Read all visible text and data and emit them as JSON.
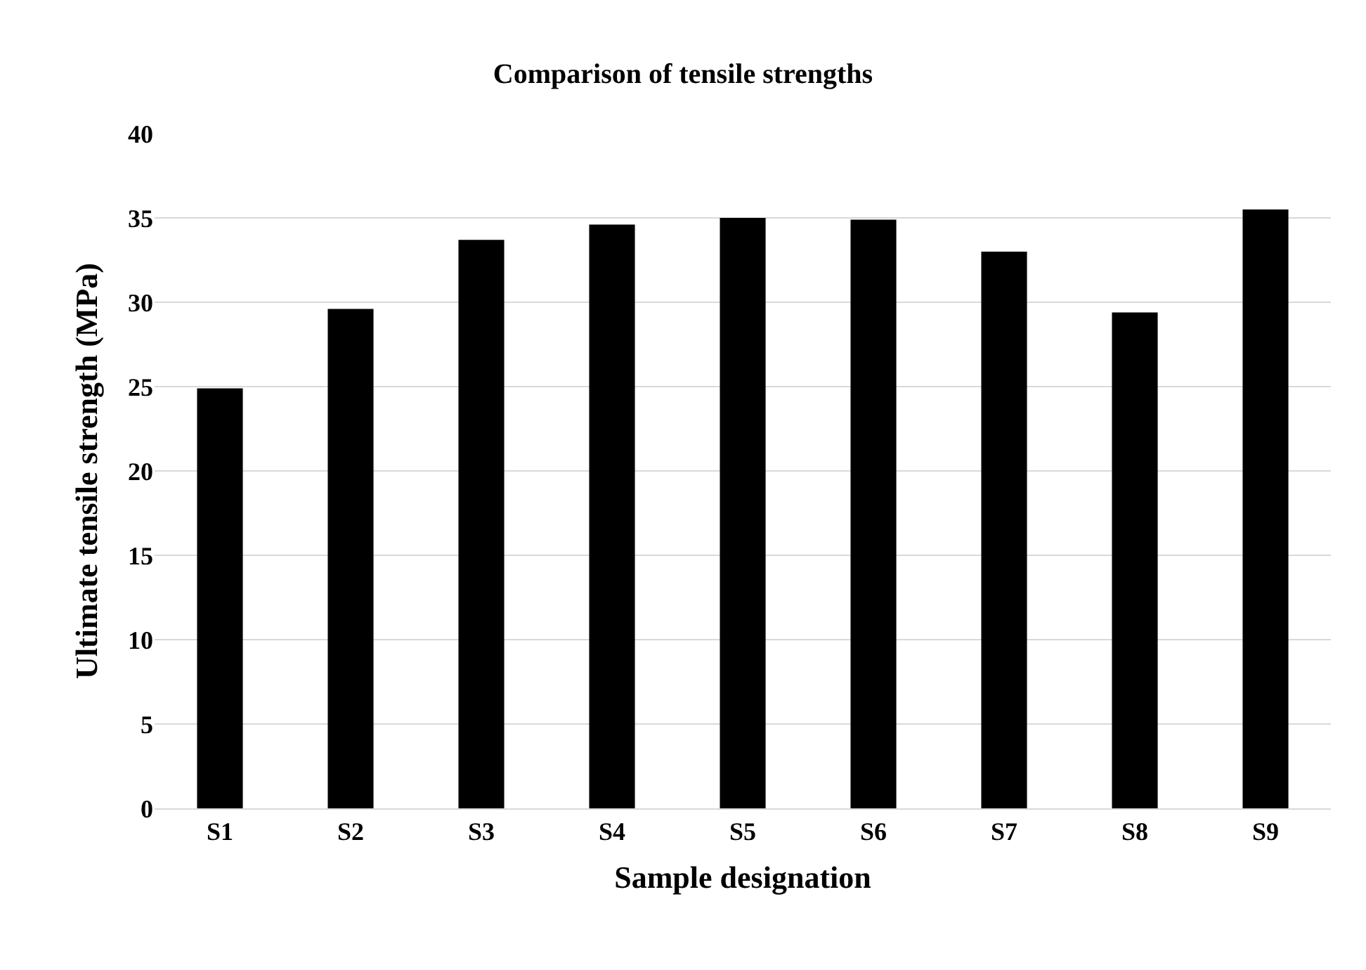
{
  "chart_data": {
    "type": "bar",
    "title": "Comparison of tensile strengths",
    "xlabel": "Sample designation",
    "ylabel": "Ultimate tensile strength (MPa)",
    "categories": [
      "S1",
      "S2",
      "S3",
      "S4",
      "S5",
      "S6",
      "S7",
      "S8",
      "S9"
    ],
    "values": [
      24.9,
      29.6,
      33.7,
      34.6,
      35.0,
      34.9,
      33.0,
      29.4,
      35.5
    ],
    "color": "#000000",
    "ylim": [
      0,
      40
    ],
    "yticks": [
      0,
      5,
      10,
      15,
      20,
      25,
      30,
      35,
      40
    ],
    "grid": "y",
    "legend": false
  }
}
